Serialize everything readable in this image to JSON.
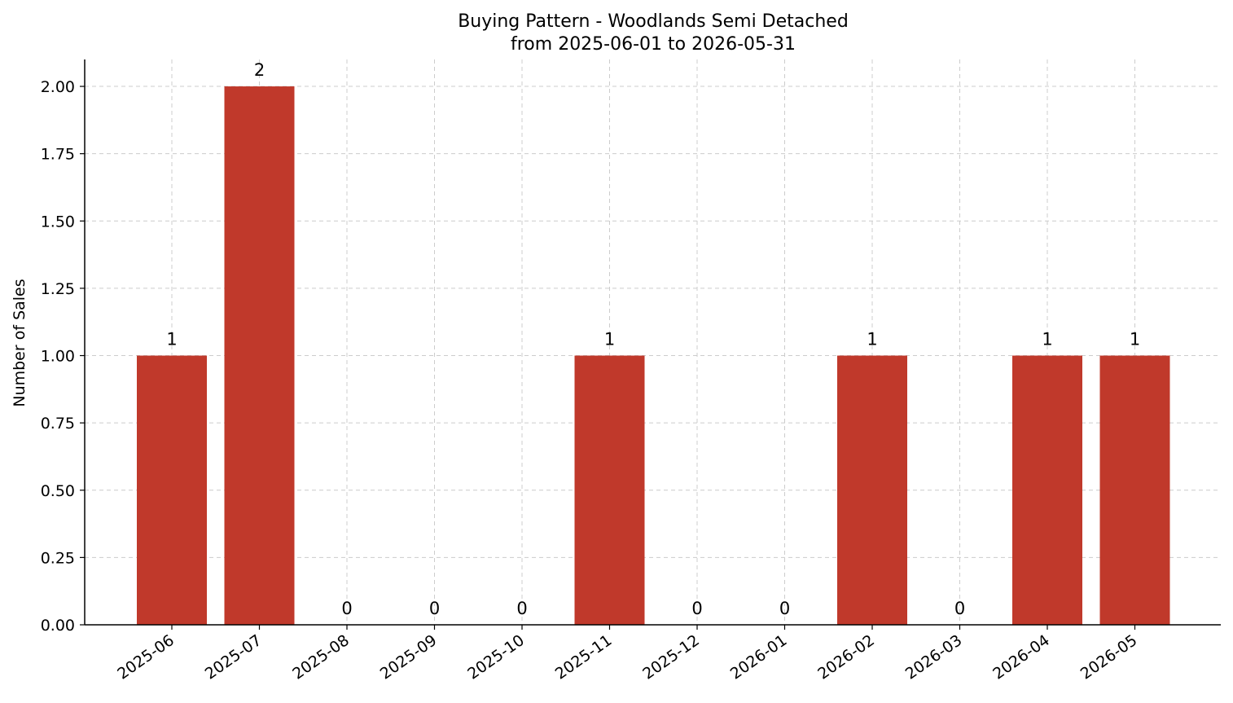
{
  "chart_data": {
    "type": "bar",
    "title": "Buying Pattern - Woodlands Semi Detached",
    "subtitle": "from 2025-06-01 to 2026-05-31",
    "xlabel": "",
    "ylabel": "Number of Sales",
    "categories": [
      "2025-06",
      "2025-07",
      "2025-08",
      "2025-09",
      "2025-10",
      "2025-11",
      "2025-12",
      "2026-01",
      "2026-02",
      "2026-03",
      "2026-04",
      "2026-05"
    ],
    "values": [
      1,
      2,
      0,
      0,
      0,
      1,
      0,
      0,
      1,
      0,
      1,
      1
    ],
    "data_labels": [
      "1",
      "2",
      "0",
      "0",
      "0",
      "1",
      "0",
      "0",
      "1",
      "0",
      "1",
      "1"
    ],
    "ylim": [
      0,
      2.1
    ],
    "yticks": [
      0,
      0.25,
      0.5,
      0.75,
      1.0,
      1.25,
      1.5,
      1.75,
      2.0
    ],
    "ytick_labels": [
      "0.00",
      "0.25",
      "0.50",
      "0.75",
      "1.00",
      "1.25",
      "1.50",
      "1.75",
      "2.00"
    ],
    "grid": true,
    "bar_color": "#c0392b",
    "grid_color": "#cccccc"
  }
}
